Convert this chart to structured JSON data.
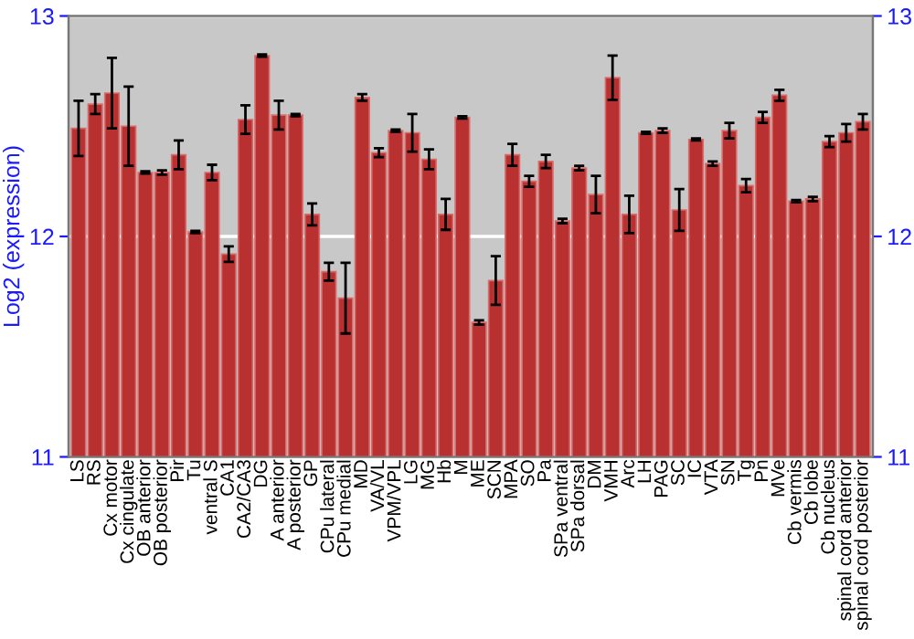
{
  "chart_data": {
    "type": "bar",
    "ylabel": "Log2 (expression)",
    "categories": [
      "LS",
      "RS",
      "Cx motor",
      "Cx cingulate",
      "OB anterior",
      "OB posterior",
      "Pir",
      "Tu",
      "ventral S",
      "CA1",
      "CA2/CA3",
      "DG",
      "A anterior",
      "A posterior",
      "GP",
      "CPu lateral",
      "CPu medial",
      "MD",
      "VA/VL",
      "VPM/VPL",
      "LG",
      "MG",
      "Hb",
      "M",
      "ME",
      "SCN",
      "MPA",
      "SO",
      "Pa",
      "SPa ventral",
      "SPa dorsal",
      "DM",
      "VMH",
      "Arc",
      "LH",
      "PAG",
      "SC",
      "IC",
      "VTA",
      "SN",
      "Tg",
      "Pn",
      "MVe",
      "Cb vermis",
      "Cb lobe",
      "Cb nucleus",
      "spinal cord anterior",
      "spinal cord posterior"
    ],
    "values": [
      12.49,
      12.6,
      12.65,
      12.5,
      12.29,
      12.29,
      12.37,
      12.02,
      12.29,
      11.92,
      12.53,
      12.82,
      12.55,
      12.55,
      12.1,
      11.84,
      11.72,
      12.63,
      12.38,
      12.48,
      12.47,
      12.35,
      12.1,
      12.54,
      11.61,
      11.8,
      12.37,
      12.25,
      12.34,
      12.07,
      12.31,
      12.19,
      12.72,
      12.1,
      12.47,
      12.48,
      12.12,
      12.44,
      12.33,
      12.48,
      12.23,
      12.54,
      12.64,
      12.16,
      12.17,
      12.43,
      12.47,
      12.52
    ],
    "errors": [
      0.125,
      0.045,
      0.16,
      0.18,
      0.005,
      0.01,
      0.065,
      0.005,
      0.035,
      0.035,
      0.065,
      0.005,
      0.065,
      0.005,
      0.05,
      0.04,
      0.16,
      0.015,
      0.02,
      0.005,
      0.085,
      0.045,
      0.07,
      0.005,
      0.01,
      0.11,
      0.05,
      0.025,
      0.03,
      0.01,
      0.01,
      0.085,
      0.1,
      0.085,
      0.005,
      0.01,
      0.095,
      0.005,
      0.01,
      0.035,
      0.03,
      0.025,
      0.025,
      0.005,
      0.01,
      0.025,
      0.04,
      0.035
    ],
    "color": "#b8302f",
    "ylim": [
      11,
      13
    ],
    "yticks": [
      11,
      12,
      13
    ],
    "y2lim": [
      11,
      13
    ],
    "y2ticks": [
      11,
      12,
      13
    ],
    "grid": "y"
  }
}
